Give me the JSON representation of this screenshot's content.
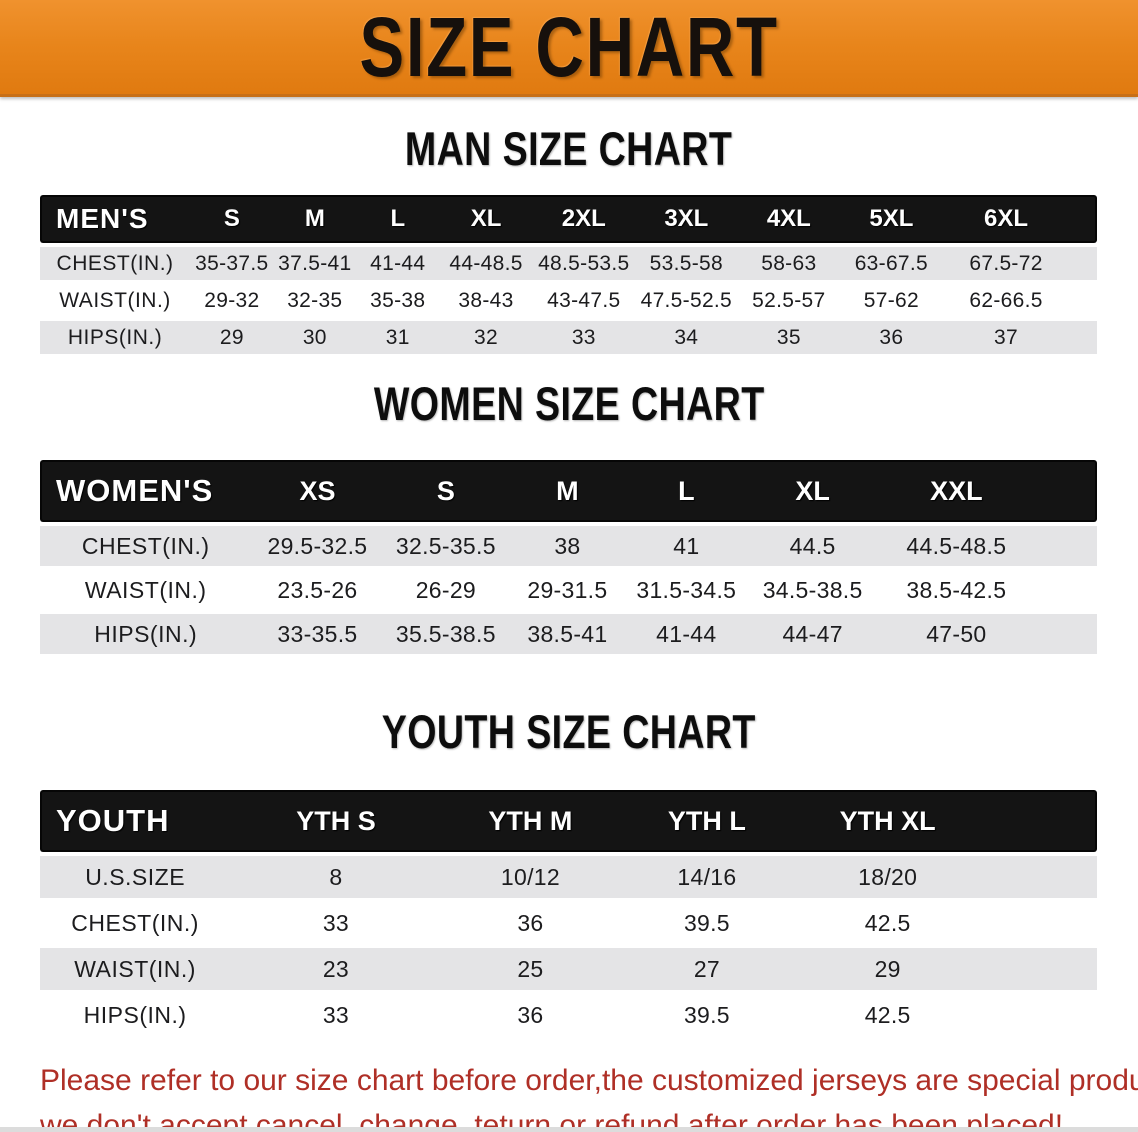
{
  "banner": {
    "title": "SIZE CHART",
    "bg_color": "#E8851B",
    "text_color": "#16100C"
  },
  "colors": {
    "table_header_bg": "#141414",
    "table_header_text": "#FFFFFF",
    "row_alt_gray": "#E4E4E6",
    "row_white": "#FFFFFF",
    "footer_red": "#AF2F26"
  },
  "sections": {
    "men": {
      "heading": "MAN SIZE CHART",
      "table": {
        "label": "MEN'S",
        "columns": [
          "S",
          "M",
          "L",
          "XL",
          "2XL",
          "3XL",
          "4XL",
          "5XL",
          "6XL"
        ],
        "rows": [
          {
            "label": "CHEST(IN.)",
            "values": [
              "35-37.5",
              "37.5-41",
              "41-44",
              "44-48.5",
              "48.5-53.5",
              "53.5-58",
              "58-63",
              "63-67.5",
              "67.5-72"
            ]
          },
          {
            "label": "WAIST(IN.)",
            "values": [
              "29-32",
              "32-35",
              "35-38",
              "38-43",
              "43-47.5",
              "47.5-52.5",
              "52.5-57",
              "57-62",
              "62-66.5"
            ]
          },
          {
            "label": "HIPS(IN.)",
            "values": [
              "29",
              "30",
              "31",
              "32",
              "33",
              "34",
              "35",
              "36",
              "37"
            ]
          }
        ]
      }
    },
    "women": {
      "heading": "WOMEN SIZE CHART",
      "table": {
        "label": "WOMEN'S",
        "columns": [
          "XS",
          "S",
          "M",
          "L",
          "XL",
          "XXL"
        ],
        "rows": [
          {
            "label": "CHEST(IN.)",
            "values": [
              "29.5-32.5",
              "32.5-35.5",
              "38",
              "41",
              "44.5",
              "44.5-48.5"
            ]
          },
          {
            "label": "WAIST(IN.)",
            "values": [
              "23.5-26",
              "26-29",
              "29-31.5",
              "31.5-34.5",
              "34.5-38.5",
              "38.5-42.5"
            ]
          },
          {
            "label": "HIPS(IN.)",
            "values": [
              "33-35.5",
              "35.5-38.5",
              "38.5-41",
              "41-44",
              "44-47",
              "47-50"
            ]
          }
        ]
      }
    },
    "youth": {
      "heading": "YOUTH SIZE CHART",
      "table": {
        "label": "YOUTH",
        "columns": [
          "YTH S",
          "YTH M",
          "YTH L",
          "YTH XL"
        ],
        "rows": [
          {
            "label": "U.S.SIZE",
            "values": [
              "8",
              "10/12",
              "14/16",
              "18/20"
            ]
          },
          {
            "label": "CHEST(IN.)",
            "values": [
              "33",
              "36",
              "39.5",
              "42.5"
            ]
          },
          {
            "label": "WAIST(IN.)",
            "values": [
              "23",
              "25",
              "27",
              "29"
            ]
          },
          {
            "label": "HIPS(IN.)",
            "values": [
              "33",
              "36",
              "39.5",
              "42.5"
            ]
          }
        ]
      }
    }
  },
  "footer": {
    "line1": "Please refer to our size chart before order,the customized jerseys are special products,",
    "line2": "we don't accept cancel, change, teturn or refund after order has been placed!"
  }
}
